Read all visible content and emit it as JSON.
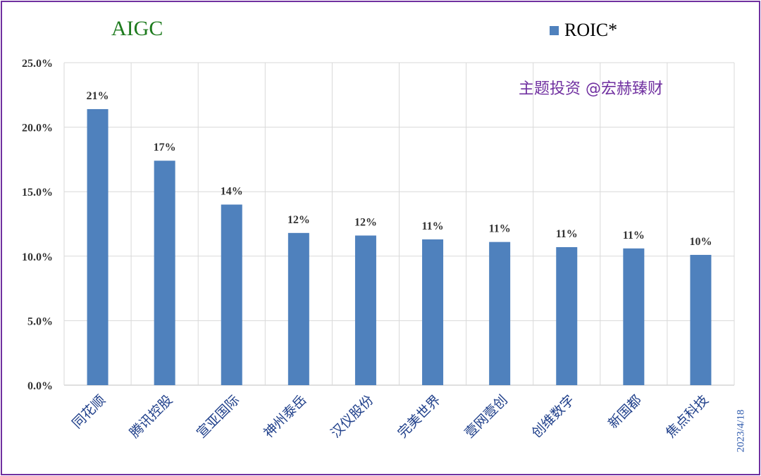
{
  "colors": {
    "bar": "#4f81bd",
    "frame": "#7030a0",
    "title": "#1e7b1e",
    "watermark": "#7030a0",
    "date": "#2e5aac",
    "xlabel": "#1f3f8a"
  },
  "watermark": "主题投资 @宏赫臻财",
  "date": "2023/4/18",
  "chart_data": {
    "type": "bar",
    "title": "AIGC",
    "xlabel": "",
    "ylabel": "",
    "ylim": [
      0,
      25
    ],
    "yticks": [
      "0.0%",
      "5.0%",
      "10.0%",
      "15.0%",
      "20.0%",
      "25.0%"
    ],
    "grid": true,
    "legend_position": "top-right",
    "categories": [
      "同花顺",
      "腾讯控股",
      "宣亚国际",
      "神州泰岳",
      "汉仪股份",
      "完美世界",
      "壹网壹创",
      "创维数字",
      "新国都",
      "焦点科技"
    ],
    "series": [
      {
        "name": "ROIC*",
        "values": [
          21.4,
          17.4,
          14.0,
          11.8,
          11.6,
          11.3,
          11.1,
          10.7,
          10.6,
          10.1
        ],
        "labels": [
          "21%",
          "17%",
          "14%",
          "12%",
          "12%",
          "11%",
          "11%",
          "11%",
          "11%",
          "10%"
        ]
      }
    ]
  }
}
